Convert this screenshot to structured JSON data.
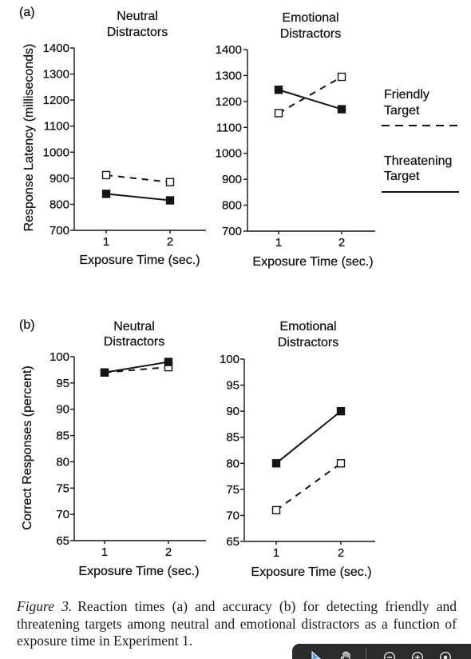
{
  "figure": {
    "panel_labels": [
      "(a)",
      "(b)"
    ],
    "caption": {
      "label": "Figure 3.",
      "lines": [
        "Reaction times (a) and accuracy (b) for detecting friendly and",
        "threatening targets among neutral and emotional distractors as a function of",
        "exposure time in Experiment 1."
      ]
    }
  },
  "legend": {
    "position": "right",
    "entries": [
      {
        "label_lines": [
          "Friendly",
          "Target"
        ],
        "line_style": "dashed",
        "marker": "open-square",
        "color": "#141414"
      },
      {
        "label_lines": [
          "Threatening",
          "Target"
        ],
        "line_style": "solid",
        "marker": "filled-square",
        "color": "#141414"
      }
    ]
  },
  "chart_data": [
    {
      "type": "line",
      "title": [
        "Neutral",
        "Distractors"
      ],
      "xlabel": "Exposure Time (sec.)",
      "ylabel": "Response Latency (milliseconds)",
      "x": [
        1,
        2
      ],
      "ylim": [
        700,
        1400
      ],
      "y_ticks": [
        700,
        800,
        900,
        1000,
        1100,
        1200,
        1300,
        1400
      ],
      "grid": false,
      "series": [
        {
          "line_style": "dashed",
          "marker": "open-square",
          "color": "#141414",
          "values": [
            912,
            885
          ]
        },
        {
          "line_style": "solid",
          "marker": "filled-square",
          "color": "#141414",
          "values": [
            840,
            815
          ]
        }
      ]
    },
    {
      "type": "line",
      "title": [
        "Emotional",
        "Distractors"
      ],
      "xlabel": "Exposure Time (sec.)",
      "ylabel": "",
      "x": [
        1,
        2
      ],
      "ylim": [
        700,
        1400
      ],
      "y_ticks": [
        700,
        800,
        900,
        1000,
        1100,
        1200,
        1300,
        1400
      ],
      "grid": false,
      "series": [
        {
          "line_style": "dashed",
          "marker": "open-square",
          "color": "#141414",
          "values": [
            1155,
            1295
          ]
        },
        {
          "line_style": "solid",
          "marker": "filled-square",
          "color": "#141414",
          "values": [
            1245,
            1170
          ]
        }
      ]
    },
    {
      "type": "line",
      "title": [
        "Neutral",
        "Distractors"
      ],
      "xlabel": "Exposure Time (sec.)",
      "ylabel": "Correct Responses (percent)",
      "x": [
        1,
        2
      ],
      "ylim": [
        65,
        100
      ],
      "y_ticks": [
        65,
        70,
        75,
        80,
        85,
        90,
        95,
        100
      ],
      "grid": false,
      "series": [
        {
          "line_style": "dashed",
          "marker": "open-square",
          "color": "#141414",
          "values": [
            97,
            98
          ]
        },
        {
          "line_style": "solid",
          "marker": "filled-square",
          "color": "#141414",
          "values": [
            97,
            99
          ]
        }
      ]
    },
    {
      "type": "line",
      "title": [
        "Emotional",
        "Distractors"
      ],
      "xlabel": "Exposure Time (sec.)",
      "ylabel": "",
      "x": [
        1,
        2
      ],
      "ylim": [
        65,
        100
      ],
      "y_ticks": [
        65,
        70,
        75,
        80,
        85,
        90,
        95,
        100
      ],
      "grid": false,
      "series": [
        {
          "line_style": "dashed",
          "marker": "open-square",
          "color": "#141414",
          "values": [
            71,
            80
          ]
        },
        {
          "line_style": "solid",
          "marker": "filled-square",
          "color": "#141414",
          "values": [
            80,
            90
          ]
        }
      ]
    }
  ],
  "viewer_toolbar": {
    "background": "#2b2b2b",
    "icon_color": "#e6e6e6",
    "accent": "#5b9fe3",
    "icons": [
      "pointer-icon",
      "hand-icon",
      "zoom-out-icon",
      "zoom-in-icon",
      "fit-page-icon"
    ]
  }
}
